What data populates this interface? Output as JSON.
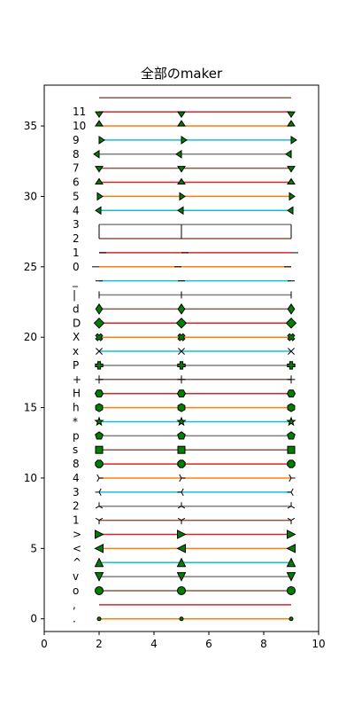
{
  "chart_data": {
    "type": "line",
    "title": "全部のmaker",
    "xlabel": "",
    "ylabel": "",
    "xlim": [
      0,
      10
    ],
    "ylim": [
      -0.9,
      37.9
    ],
    "grid": false,
    "x_ticks": [
      0,
      2,
      4,
      6,
      8,
      10
    ],
    "y_ticks": [
      0,
      5,
      10,
      15,
      20,
      25,
      30,
      35
    ],
    "x": [
      2,
      5,
      9
    ],
    "marker_fill": "#008000",
    "series": [
      {
        "label": ".",
        "y": 0,
        "marker": "point",
        "color": "#ff7f0e"
      },
      {
        "label": ",",
        "y": 1,
        "marker": "pixel",
        "color": "#d62728"
      },
      {
        "label": "o",
        "y": 2,
        "marker": "circle",
        "color": "#8c564b"
      },
      {
        "label": "v",
        "y": 3,
        "marker": "triangle_down",
        "color": "#7f7f7f"
      },
      {
        "label": "^",
        "y": 4,
        "marker": "triangle_up",
        "color": "#17becf"
      },
      {
        "label": "<",
        "y": 5,
        "marker": "triangle_left",
        "color": "#ff7f0e"
      },
      {
        "label": ">",
        "y": 6,
        "marker": "triangle_right",
        "color": "#d62728"
      },
      {
        "label": "1",
        "y": 7,
        "marker": "tri_down",
        "color": "#8c564b"
      },
      {
        "label": "2",
        "y": 8,
        "marker": "tri_up",
        "color": "#7f7f7f"
      },
      {
        "label": "3",
        "y": 9,
        "marker": "tri_left",
        "color": "#17becf"
      },
      {
        "label": "4",
        "y": 10,
        "marker": "tri_right",
        "color": "#ff7f0e"
      },
      {
        "label": "8",
        "y": 11,
        "marker": "octagon",
        "color": "#d62728"
      },
      {
        "label": "s",
        "y": 12,
        "marker": "square",
        "color": "#8c564b"
      },
      {
        "label": "p",
        "y": 13,
        "marker": "pentagon",
        "color": "#7f7f7f"
      },
      {
        "label": "*",
        "y": 14,
        "marker": "star",
        "color": "#17becf"
      },
      {
        "label": "h",
        "y": 15,
        "marker": "hexagon1",
        "color": "#ff7f0e"
      },
      {
        "label": "H",
        "y": 16,
        "marker": "hexagon2",
        "color": "#d62728"
      },
      {
        "label": "+",
        "y": 17,
        "marker": "plus",
        "color": "#8c564b"
      },
      {
        "label": "P",
        "y": 18,
        "marker": "plus_filled",
        "color": "#7f7f7f"
      },
      {
        "label": "x",
        "y": 19,
        "marker": "x",
        "color": "#17becf"
      },
      {
        "label": "X",
        "y": 20,
        "marker": "x_filled",
        "color": "#ff7f0e"
      },
      {
        "label": "D",
        "y": 21,
        "marker": "diamond",
        "color": "#d62728"
      },
      {
        "label": "d",
        "y": 22,
        "marker": "thin_diamond",
        "color": "#8c564b"
      },
      {
        "label": "|",
        "y": 23,
        "marker": "vline",
        "color": "#7f7f7f"
      },
      {
        "label": "_",
        "y": 24,
        "marker": "hline",
        "color": "#17becf"
      },
      {
        "label": "0",
        "y": 25,
        "marker": "tickleft",
        "color": "#ff7f0e"
      },
      {
        "label": "1",
        "y": 26,
        "marker": "tickright",
        "color": "#d62728"
      },
      {
        "label": "2",
        "y": 27,
        "marker": "tickup",
        "color": "#8c564b"
      },
      {
        "label": "3",
        "y": 28,
        "marker": "tickdown",
        "color": "#7f7f7f"
      },
      {
        "label": "4",
        "y": 29,
        "marker": "caretleft",
        "color": "#17becf"
      },
      {
        "label": "5",
        "y": 30,
        "marker": "caretright",
        "color": "#ff7f0e"
      },
      {
        "label": "6",
        "y": 31,
        "marker": "caretup",
        "color": "#d62728"
      },
      {
        "label": "7",
        "y": 32,
        "marker": "caretdown",
        "color": "#8c564b"
      },
      {
        "label": "8",
        "y": 33,
        "marker": "caretleftbase",
        "color": "#7f7f7f"
      },
      {
        "label": "9",
        "y": 34,
        "marker": "caretrightbase",
        "color": "#17becf"
      },
      {
        "label": "10",
        "y": 35,
        "marker": "caretupbase",
        "color": "#ff7f0e"
      },
      {
        "label": "11",
        "y": 36,
        "marker": "caretdownbase",
        "color": "#d62728"
      },
      {
        "label": "",
        "y": 37,
        "marker": "none",
        "color": "#8c564b"
      }
    ]
  }
}
